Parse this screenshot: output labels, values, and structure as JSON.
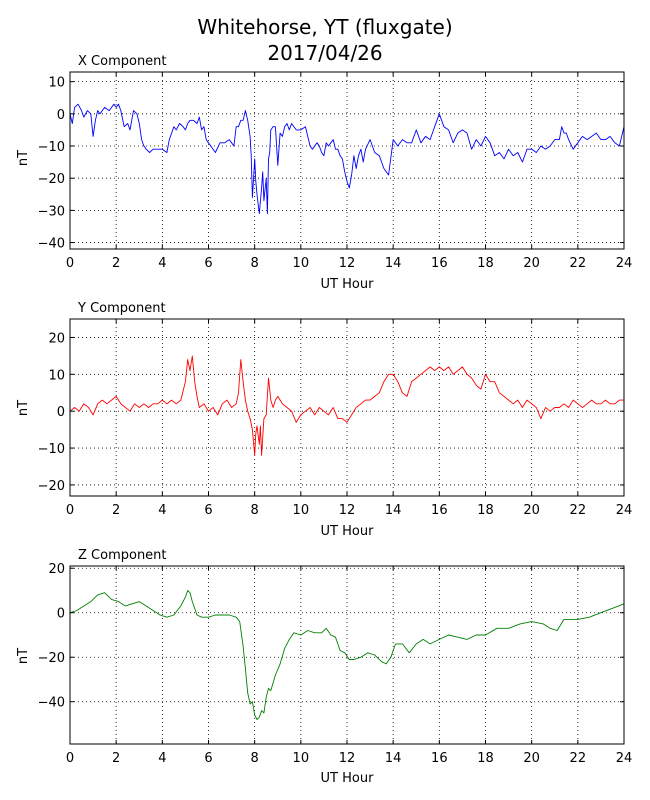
{
  "figure": {
    "title_line1": "Whitehorse, YT (fluxgate)",
    "title_line2": "2017/04/26"
  },
  "chart_data": [
    {
      "type": "line",
      "title": "X Component",
      "xlabel": "UT Hour",
      "ylabel": "nT",
      "xlim": [
        0,
        24
      ],
      "ylim": [
        -42,
        13
      ],
      "xticks": [
        0,
        2,
        4,
        6,
        8,
        10,
        12,
        14,
        16,
        18,
        20,
        22,
        24
      ],
      "yticks": [
        -40,
        -30,
        -20,
        -10,
        0,
        10
      ],
      "grid": true,
      "color": "#0000ff",
      "series": [
        {
          "x": [
            0,
            0.1,
            0.2,
            0.35,
            0.5,
            0.6,
            0.75,
            0.9,
            1.0,
            1.1,
            1.2,
            1.3,
            1.5,
            1.7,
            1.9,
            2.0,
            2.1,
            2.2,
            2.35,
            2.5,
            2.6,
            2.75,
            2.9,
            3.0,
            3.1,
            3.2,
            3.3,
            3.45,
            3.6,
            3.8,
            4.0,
            4.2,
            4.3,
            4.4,
            4.5,
            4.6,
            4.75,
            4.9,
            5.0,
            5.1,
            5.2,
            5.35,
            5.5,
            5.6,
            5.7,
            5.8,
            5.9,
            6.0,
            6.1,
            6.3,
            6.5,
            6.7,
            6.9,
            7.0,
            7.1,
            7.2,
            7.3,
            7.4,
            7.5,
            7.6,
            7.7,
            7.8,
            7.85,
            7.9,
            8.0,
            8.05,
            8.1,
            8.2,
            8.3,
            8.35,
            8.4,
            8.5,
            8.55,
            8.6,
            8.65,
            8.7,
            8.8,
            8.9,
            9.0,
            9.1,
            9.2,
            9.3,
            9.4,
            9.5,
            9.6,
            9.8,
            10.0,
            10.2,
            10.4,
            10.5,
            10.7,
            10.8,
            10.9,
            11.0,
            11.1,
            11.2,
            11.3,
            11.4,
            11.5,
            11.6,
            11.7,
            11.8,
            11.9,
            12.0,
            12.1,
            12.2,
            12.3,
            12.4,
            12.5,
            12.6,
            12.7,
            12.8,
            13.0,
            13.2,
            13.4,
            13.5,
            13.6,
            13.8,
            14.0,
            14.2,
            14.4,
            14.6,
            14.8,
            15.0,
            15.2,
            15.4,
            15.6,
            15.7,
            15.8,
            15.9,
            16.0,
            16.2,
            16.4,
            16.6,
            16.8,
            17.0,
            17.2,
            17.4,
            17.6,
            17.8,
            18.0,
            18.2,
            18.4,
            18.6,
            18.8,
            19.0,
            19.2,
            19.4,
            19.6,
            19.8,
            20.0,
            20.2,
            20.4,
            20.6,
            20.8,
            21.0,
            21.2,
            21.3,
            21.4,
            21.5,
            21.6,
            21.8,
            22.0,
            22.2,
            22.4,
            22.6,
            22.8,
            23.0,
            23.2,
            23.4,
            23.6,
            23.8,
            24.0
          ],
          "y": [
            0,
            -3,
            2,
            3,
            1,
            -1,
            1,
            0,
            -7,
            -2,
            1,
            0,
            2,
            1,
            3,
            2,
            3,
            1,
            -4,
            -3,
            -5,
            1,
            0,
            -3,
            -8,
            -10,
            -11,
            -12,
            -11,
            -11,
            -11,
            -12,
            -8,
            -6,
            -4,
            -5,
            -3,
            -4,
            -5,
            -3,
            -2,
            -2,
            -3,
            -1,
            -5,
            -4,
            -8,
            -9,
            -10,
            -12,
            -9,
            -9,
            -8,
            -9,
            -10,
            -4,
            -4,
            -2,
            -2,
            1,
            -2,
            -7,
            -13,
            -26,
            -14,
            -21,
            -25,
            -31,
            -23,
            -18,
            -27,
            -20,
            -31,
            -14,
            -12,
            -5,
            -4,
            -4,
            -16,
            -6,
            -7,
            -4,
            -3,
            -5,
            -3,
            -5,
            -5,
            -4,
            -10,
            -11,
            -9,
            -10,
            -12,
            -13,
            -9,
            -10,
            -9,
            -8,
            -11,
            -11,
            -13,
            -14,
            -18,
            -21,
            -23,
            -19,
            -13,
            -17,
            -13,
            -11,
            -15,
            -11,
            -8,
            -12,
            -13,
            -15,
            -17,
            -19,
            -8,
            -10,
            -8,
            -9,
            -9,
            -5,
            -9,
            -7,
            -8,
            -6,
            -4,
            -2,
            0,
            -4,
            -5,
            -9,
            -6,
            -5,
            -6,
            -11,
            -8,
            -10,
            -7,
            -9,
            -13,
            -12,
            -14,
            -11,
            -13,
            -12,
            -15,
            -11,
            -11,
            -12,
            -10,
            -11,
            -10,
            -8,
            -8,
            -4,
            -6,
            -6,
            -8,
            -11,
            -9,
            -7,
            -8,
            -7,
            -6,
            -8,
            -8,
            -7,
            -9,
            -10,
            -4
          ]
        }
      ]
    },
    {
      "type": "line",
      "title": "Y Component",
      "xlabel": "UT Hour",
      "ylabel": "nT",
      "xlim": [
        0,
        24
      ],
      "ylim": [
        -23,
        25
      ],
      "xticks": [
        0,
        2,
        4,
        6,
        8,
        10,
        12,
        14,
        16,
        18,
        20,
        22,
        24
      ],
      "yticks": [
        -20,
        -10,
        0,
        10,
        20
      ],
      "grid": true,
      "color": "#ff0000",
      "series": [
        {
          "x": [
            0,
            0.2,
            0.4,
            0.6,
            0.8,
            1.0,
            1.2,
            1.4,
            1.6,
            1.8,
            2.0,
            2.2,
            2.4,
            2.6,
            2.8,
            3.0,
            3.2,
            3.4,
            3.6,
            3.8,
            4.0,
            4.2,
            4.4,
            4.6,
            4.8,
            5.0,
            5.1,
            5.2,
            5.3,
            5.4,
            5.5,
            5.6,
            5.8,
            6.0,
            6.2,
            6.4,
            6.6,
            6.8,
            7.0,
            7.2,
            7.3,
            7.4,
            7.5,
            7.6,
            7.7,
            7.8,
            7.9,
            8.0,
            8.05,
            8.1,
            8.2,
            8.25,
            8.3,
            8.4,
            8.5,
            8.6,
            8.7,
            8.8,
            8.9,
            9.0,
            9.2,
            9.4,
            9.6,
            9.8,
            10.0,
            10.2,
            10.4,
            10.6,
            10.8,
            11.0,
            11.2,
            11.4,
            11.6,
            11.8,
            12.0,
            12.2,
            12.4,
            12.6,
            12.8,
            13.0,
            13.2,
            13.4,
            13.6,
            13.8,
            14.0,
            14.2,
            14.4,
            14.6,
            14.8,
            15.0,
            15.2,
            15.4,
            15.6,
            15.8,
            16.0,
            16.2,
            16.4,
            16.6,
            16.8,
            17.0,
            17.2,
            17.4,
            17.6,
            17.8,
            18.0,
            18.2,
            18.4,
            18.6,
            18.8,
            19.0,
            19.2,
            19.4,
            19.6,
            19.8,
            20.0,
            20.2,
            20.4,
            20.6,
            20.8,
            21.0,
            21.2,
            21.4,
            21.6,
            21.8,
            22.0,
            22.2,
            22.4,
            22.6,
            22.8,
            23.0,
            23.2,
            23.4,
            23.6,
            23.8,
            24.0
          ],
          "y": [
            0,
            1,
            0,
            2,
            1,
            -1,
            2,
            3,
            2,
            3,
            4,
            2,
            1,
            0,
            2,
            1,
            2,
            1,
            2,
            2,
            3,
            2,
            3,
            2,
            3,
            8,
            14,
            11,
            15,
            8,
            4,
            1,
            2,
            0,
            1,
            -1,
            2,
            3,
            1,
            2,
            5,
            14,
            8,
            3,
            0,
            -2,
            -5,
            -12,
            -6,
            -4,
            -9,
            -4,
            -12,
            -2,
            -1,
            9,
            3,
            1,
            3,
            4,
            2,
            1,
            0,
            -3,
            -1,
            0,
            1,
            -1,
            1,
            0,
            -1,
            1,
            -2,
            -2,
            -3,
            -1,
            1,
            2,
            3,
            3,
            4,
            5,
            8,
            10,
            10,
            8,
            5,
            4,
            8,
            9,
            10,
            11,
            12,
            11,
            12,
            11,
            12,
            10,
            11,
            12,
            10,
            9,
            7,
            6,
            10,
            8,
            8,
            5,
            4,
            3,
            2,
            3,
            1,
            3,
            2,
            1,
            -2,
            1,
            0,
            1,
            1,
            2,
            1,
            3,
            2,
            1,
            2,
            3,
            2,
            2,
            3,
            2,
            2,
            3,
            3
          ]
        }
      ]
    },
    {
      "type": "line",
      "title": "Z Component",
      "xlabel": "UT Hour",
      "ylabel": "nT",
      "xlim": [
        0,
        24
      ],
      "ylim": [
        -59,
        21
      ],
      "xticks": [
        0,
        2,
        4,
        6,
        8,
        10,
        12,
        14,
        16,
        18,
        20,
        22,
        24
      ],
      "yticks": [
        -40,
        -20,
        0,
        20
      ],
      "grid": true,
      "color": "#008000",
      "series": [
        {
          "x": [
            0,
            0.3,
            0.6,
            0.9,
            1.2,
            1.5,
            1.8,
            2.1,
            2.4,
            2.7,
            3.0,
            3.3,
            3.6,
            3.9,
            4.2,
            4.5,
            4.8,
            5.0,
            5.1,
            5.2,
            5.3,
            5.5,
            5.7,
            6.0,
            6.3,
            6.6,
            6.9,
            7.2,
            7.35,
            7.5,
            7.6,
            7.7,
            7.8,
            7.9,
            8.0,
            8.1,
            8.2,
            8.3,
            8.4,
            8.5,
            8.6,
            8.7,
            8.9,
            9.1,
            9.3,
            9.5,
            9.7,
            10.0,
            10.3,
            10.6,
            10.9,
            11.1,
            11.3,
            11.5,
            11.7,
            11.9,
            12.1,
            12.3,
            12.6,
            12.9,
            13.2,
            13.5,
            13.7,
            13.9,
            14.1,
            14.4,
            14.7,
            15.0,
            15.3,
            15.6,
            16.0,
            16.4,
            16.8,
            17.2,
            17.6,
            18.0,
            18.5,
            19.0,
            19.5,
            20.0,
            20.5,
            20.8,
            21.1,
            21.4,
            21.7,
            22.0,
            22.5,
            23.0,
            23.5,
            24.0
          ],
          "y": [
            0,
            1,
            3,
            5,
            8,
            9,
            6,
            5,
            3,
            4,
            5,
            3,
            1,
            -1,
            -2,
            -1,
            3,
            7,
            10,
            9,
            5,
            -1,
            -2,
            -2,
            -1,
            -1,
            -1,
            -2,
            -4,
            -15,
            -25,
            -36,
            -41,
            -40,
            -46,
            -48,
            -47,
            -44,
            -45,
            -38,
            -34,
            -35,
            -28,
            -23,
            -16,
            -12,
            -9,
            -10,
            -8,
            -9,
            -9,
            -7,
            -10,
            -11,
            -17,
            -18,
            -21,
            -21,
            -20,
            -18,
            -19,
            -22,
            -23,
            -20,
            -14,
            -14,
            -18,
            -14,
            -12,
            -14,
            -12,
            -10,
            -11,
            -12,
            -10,
            -10,
            -7,
            -7,
            -5,
            -4,
            -5,
            -7,
            -8,
            -3,
            -3,
            -3,
            -2,
            0,
            2,
            4
          ]
        }
      ]
    }
  ]
}
